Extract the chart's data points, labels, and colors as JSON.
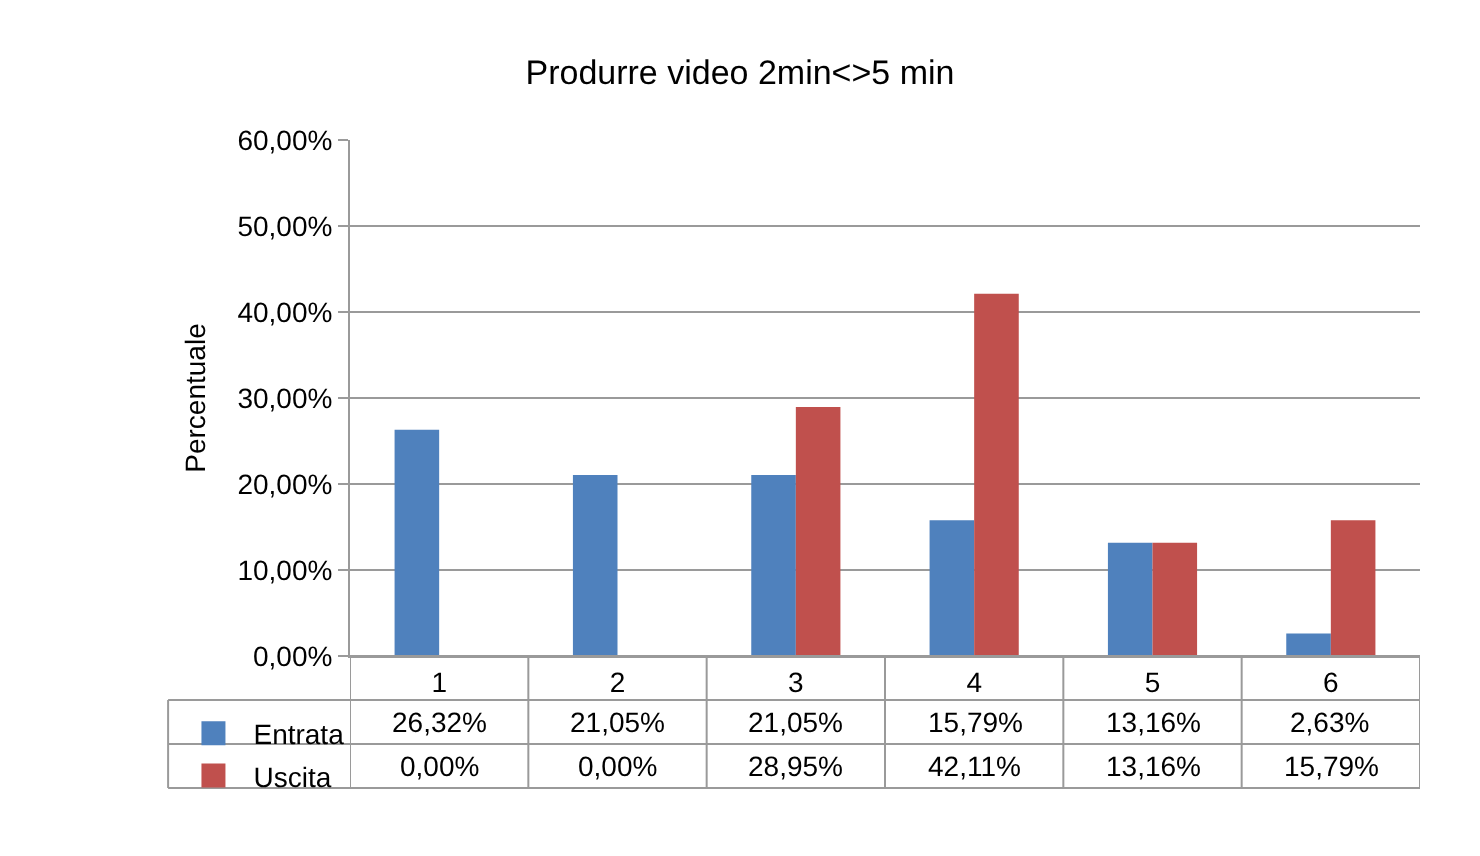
{
  "chart_data": {
    "type": "bar",
    "title": "Produrre video 2min<>5 min",
    "ylabel": "Percentuale",
    "categories": [
      "1",
      "2",
      "3",
      "4",
      "5",
      "6"
    ],
    "series": [
      {
        "name": "Entrata",
        "color": "#4f81bd",
        "values": [
          26.32,
          21.05,
          21.05,
          15.79,
          13.16,
          2.63
        ],
        "value_labels": [
          "26,32%",
          "21,05%",
          "21,05%",
          "15,79%",
          "13,16%",
          "2,63%"
        ]
      },
      {
        "name": "Uscita",
        "color": "#c0504d",
        "values": [
          0,
          0,
          28.95,
          42.11,
          13.16,
          15.79
        ],
        "value_labels": [
          "0,00%",
          "0,00%",
          "28,95%",
          "42,11%",
          "13,16%",
          "15,79%"
        ]
      }
    ],
    "ylim": [
      0,
      60
    ],
    "yticks": [
      {
        "value": 0,
        "label": "0,00%"
      },
      {
        "value": 10,
        "label": "10,00%"
      },
      {
        "value": 20,
        "label": "20,00%"
      },
      {
        "value": 30,
        "label": "30,00%"
      },
      {
        "value": 40,
        "label": "40,00%"
      },
      {
        "value": 50,
        "label": "50,00%"
      },
      {
        "value": 60,
        "label": "60,00%"
      }
    ],
    "grid": "y",
    "legend": "bottom left"
  }
}
